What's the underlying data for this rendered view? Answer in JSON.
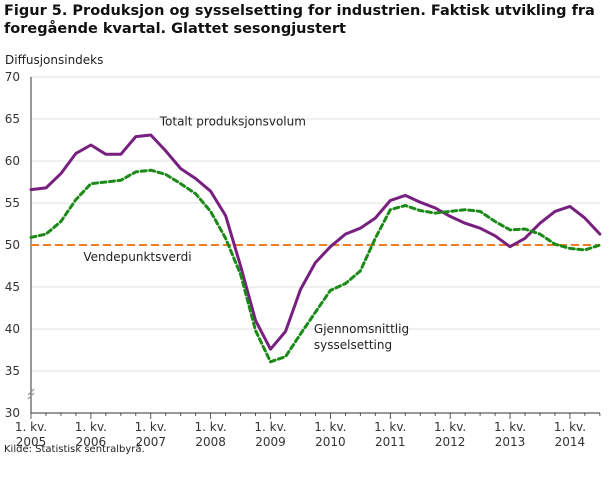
{
  "figure": {
    "title_line1": "Figur 5. Produksjon og sysselsetting for industrien. Faktisk utvikling fra",
    "title_line2": "foregående kvartal. Glattet sesongjustert",
    "source": "Kilde: Statistisk sentralbyrå."
  },
  "chart_data": {
    "type": "line",
    "ylabel": "Diffusjonsindeks",
    "ylim": [
      30,
      70
    ],
    "yticks": [
      30,
      35,
      40,
      45,
      50,
      55,
      60,
      65,
      70
    ],
    "xticks": [
      {
        "q": 0,
        "line1": "1. kv.",
        "line2": "2005"
      },
      {
        "q": 4,
        "line1": "1. kv.",
        "line2": "2006"
      },
      {
        "q": 8,
        "line1": "1. kv.",
        "line2": "2007"
      },
      {
        "q": 12,
        "line1": "1. kv.",
        "line2": "2008"
      },
      {
        "q": 16,
        "line1": "1. kv.",
        "line2": "2009"
      },
      {
        "q": 20,
        "line1": "1. kv.",
        "line2": "2010"
      },
      {
        "q": 24,
        "line1": "1. kv.",
        "line2": "2011"
      },
      {
        "q": 28,
        "line1": "1. kv.",
        "line2": "2012"
      },
      {
        "q": 32,
        "line1": "1. kv.",
        "line2": "2013"
      },
      {
        "q": 36,
        "line1": "1. kv.",
        "line2": "2014"
      }
    ],
    "x_quarters": [
      "2005K1",
      "2005K2",
      "2005K3",
      "2005K4",
      "2006K1",
      "2006K2",
      "2006K3",
      "2006K4",
      "2007K1",
      "2007K2",
      "2007K3",
      "2007K4",
      "2008K1",
      "2008K2",
      "2008K3",
      "2008K4",
      "2009K1",
      "2009K2",
      "2009K3",
      "2009K4",
      "2010K1",
      "2010K2",
      "2010K3",
      "2010K4",
      "2011K1",
      "2011K2",
      "2011K3",
      "2011K4",
      "2012K1",
      "2012K2",
      "2012K3",
      "2012K4",
      "2013K1",
      "2013K2",
      "2013K3",
      "2013K4",
      "2014K1",
      "2014K2",
      "2014K3"
    ],
    "reference_line": {
      "value": 50,
      "label": "Vendepunktsverdi",
      "color": "#ee7d24"
    },
    "series": [
      {
        "name": "Totalt produksjonsvolum",
        "color": "#77207f",
        "style": "solid",
        "values": [
          56.6,
          56.8,
          58.5,
          60.9,
          61.9,
          60.8,
          60.8,
          62.9,
          63.1,
          61.2,
          59.1,
          57.9,
          56.4,
          53.5,
          47.5,
          41.0,
          37.6,
          39.7,
          44.7,
          47.9,
          49.8,
          51.3,
          52.0,
          53.2,
          55.3,
          55.9,
          55.1,
          54.4,
          53.4,
          52.6,
          52.0,
          51.1,
          49.8,
          50.8,
          52.6,
          54.0,
          54.6,
          53.2,
          51.3
        ]
      },
      {
        "name": "Gjennomsnittlig sysselsetting",
        "color": "#1b8a17",
        "style": "dashed",
        "values": [
          50.9,
          51.3,
          52.8,
          55.4,
          57.3,
          57.5,
          57.7,
          58.7,
          58.9,
          58.4,
          57.3,
          56.1,
          54.0,
          50.8,
          46.5,
          39.8,
          36.1,
          36.7,
          39.4,
          42.0,
          44.6,
          45.4,
          46.9,
          50.8,
          54.2,
          54.7,
          54.1,
          53.8,
          54.0,
          54.2,
          54.0,
          52.8,
          51.8,
          51.9,
          51.3,
          50.1,
          49.6,
          49.4,
          50.0
        ]
      }
    ],
    "annotations": [
      {
        "text": "Totalt produksjonsvolum",
        "q": 8.6,
        "y": 64.2
      },
      {
        "text": "Vendepunktsverdi",
        "q": 3.5,
        "y": 48.1
      },
      {
        "text": "Gjennomsnittlig",
        "q": 18.9,
        "y": 39.5
      },
      {
        "text": "sysselsetting",
        "q": 18.9,
        "y": 37.6
      }
    ]
  }
}
